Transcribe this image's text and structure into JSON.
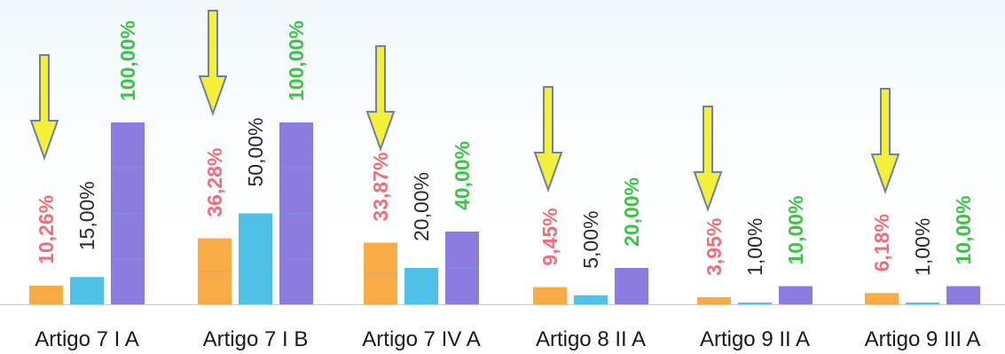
{
  "chart_data": {
    "type": "bar",
    "title": "",
    "xlabel": "",
    "ylabel": "",
    "ylim": [
      0,
      100
    ],
    "grid": false,
    "legend": "none",
    "categories": [
      "Artigo 7 I A",
      "Artigo 7 I B",
      "Artigo 7 IV A",
      "Artigo 8 II A",
      "Artigo 9 II A",
      "Artigo 9 III A"
    ],
    "series": [
      {
        "color": "#f9ab45",
        "label_color": "#f26c7a",
        "values": [
          10.26,
          36.28,
          33.87,
          9.45,
          3.95,
          6.18
        ],
        "labels": [
          "10,26%",
          "36,28%",
          "33,87%",
          "9,45%",
          "3,95%",
          "6,18%"
        ]
      },
      {
        "color": "#4fc0e6",
        "label_color": "#2a2a2a",
        "values": [
          15.0,
          50.0,
          20.0,
          5.0,
          1.0,
          1.0
        ],
        "labels": [
          "15,00%",
          "50,00%",
          "20,00%",
          "5,00%",
          "1,00%",
          "1,00%"
        ]
      },
      {
        "color": "#8c7ce0",
        "label_color": "#3ec247",
        "values": [
          100.0,
          100.0,
          40.0,
          20.0,
          10.0,
          10.0
        ],
        "labels": [
          "100,00%",
          "100,00%",
          "40,00%",
          "20,00%",
          "10,00%",
          "10,00%"
        ]
      }
    ],
    "annotations": {
      "type": "arrow-down",
      "fill": "#f4f03a",
      "stroke": "#6f7fa6"
    }
  }
}
